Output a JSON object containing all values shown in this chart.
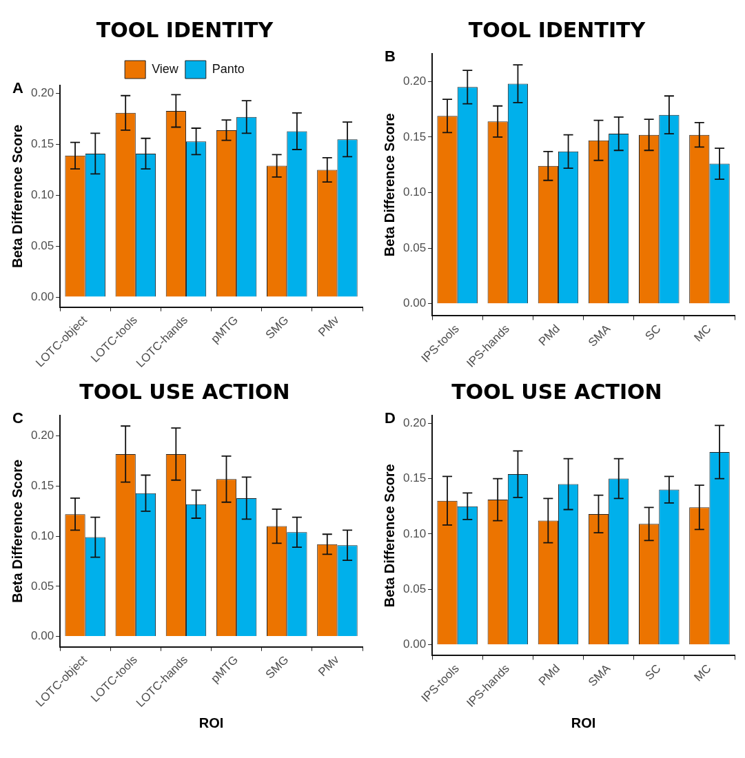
{
  "chart_data": [
    {
      "type": "bar",
      "title": "TOOL IDENTITY",
      "ylabel": "Beta Difference Score",
      "annotations": [
        "A"
      ],
      "categories": [
        "LOTC-object",
        "LOTC-tools",
        "LOTC-hands",
        "pMTG",
        "SMG",
        "PMv"
      ],
      "legend": "top",
      "grid": false,
      "ylim": [
        -0.01,
        0.208
      ],
      "yticks": [
        {
          "value": 0,
          "label": "0.00"
        },
        {
          "value": 0.05,
          "label": "0.05"
        },
        {
          "value": 0.1,
          "label": "0.10"
        },
        {
          "value": 0.15,
          "label": "0.15"
        },
        {
          "value": 0.2,
          "label": "0.20"
        }
      ],
      "series": [
        {
          "name": "View",
          "color": "#ec7400",
          "values": [
            0.139,
            0.181,
            0.183,
            0.164,
            0.129,
            0.125
          ],
          "errors": [
            [
              0.126,
              0.152
            ],
            [
              0.164,
              0.198
            ],
            [
              0.167,
              0.199
            ],
            [
              0.154,
              0.174
            ],
            [
              0.118,
              0.14
            ],
            [
              0.113,
              0.137
            ]
          ]
        },
        {
          "name": "Panto",
          "color": "#00b0eb",
          "values": [
            0.141,
            0.141,
            0.153,
            0.177,
            0.163,
            0.155
          ],
          "errors": [
            [
              0.121,
              0.161
            ],
            [
              0.126,
              0.156
            ],
            [
              0.14,
              0.166
            ],
            [
              0.161,
              0.193
            ],
            [
              0.145,
              0.181
            ],
            [
              0.138,
              0.172
            ]
          ]
        }
      ]
    },
    {
      "type": "bar",
      "title": "TOOL IDENTITY",
      "ylabel": "Beta Difference Score",
      "annotations": [
        "B"
      ],
      "categories": [
        "IPS-tools",
        "IPS-hands",
        "PMd",
        "SMA",
        "SC",
        "MC"
      ],
      "grid": false,
      "ylim": [
        -0.011,
        0.225
      ],
      "yticks": [
        {
          "value": 0,
          "label": "0.00"
        },
        {
          "value": 0.05,
          "label": "0.05"
        },
        {
          "value": 0.1,
          "label": "0.10"
        },
        {
          "value": 0.15,
          "label": "0.15"
        },
        {
          "value": 0.2,
          "label": "0.20"
        }
      ],
      "series": [
        {
          "color": "#ec7400",
          "values": [
            0.169,
            0.164,
            0.124,
            0.147,
            0.152,
            0.152
          ],
          "errors": [
            [
              0.154,
              0.184
            ],
            [
              0.15,
              0.178
            ],
            [
              0.111,
              0.137
            ],
            [
              0.129,
              0.165
            ],
            [
              0.138,
              0.166
            ],
            [
              0.141,
              0.163
            ]
          ]
        },
        {
          "color": "#00b0eb",
          "values": [
            0.195,
            0.198,
            0.137,
            0.153,
            0.17,
            0.126
          ],
          "errors": [
            [
              0.18,
              0.21
            ],
            [
              0.181,
              0.215
            ],
            [
              0.122,
              0.152
            ],
            [
              0.138,
              0.168
            ],
            [
              0.153,
              0.187
            ],
            [
              0.112,
              0.14
            ]
          ]
        }
      ]
    },
    {
      "type": "bar",
      "title": "TOOL USE ACTION",
      "xlabel": "ROI",
      "ylabel": "Beta Difference Score",
      "annotations": [
        "C"
      ],
      "categories": [
        "LOTC-object",
        "LOTC-tools",
        "LOTC-hands",
        "pMTG",
        "SMG",
        "PMv"
      ],
      "grid": false,
      "ylim": [
        -0.0105,
        0.2205
      ],
      "yticks": [
        {
          "value": 0,
          "label": "0.00"
        },
        {
          "value": 0.05,
          "label": "0.05"
        },
        {
          "value": 0.1,
          "label": "0.10"
        },
        {
          "value": 0.15,
          "label": "0.15"
        },
        {
          "value": 0.2,
          "label": "0.20"
        }
      ],
      "series": [
        {
          "color": "#ec7400",
          "values": [
            0.122,
            0.182,
            0.182,
            0.157,
            0.11,
            0.092
          ],
          "errors": [
            [
              0.106,
              0.138
            ],
            [
              0.154,
              0.21
            ],
            [
              0.156,
              0.208
            ],
            [
              0.134,
              0.18
            ],
            [
              0.093,
              0.127
            ],
            [
              0.082,
              0.102
            ]
          ]
        },
        {
          "color": "#00b0eb",
          "values": [
            0.099,
            0.143,
            0.132,
            0.138,
            0.104,
            0.091
          ],
          "errors": [
            [
              0.079,
              0.119
            ],
            [
              0.125,
              0.161
            ],
            [
              0.118,
              0.146
            ],
            [
              0.117,
              0.159
            ],
            [
              0.089,
              0.119
            ],
            [
              0.076,
              0.106
            ]
          ]
        }
      ]
    },
    {
      "type": "bar",
      "title": "TOOL USE ACTION",
      "xlabel": "ROI",
      "ylabel": "Beta Difference Score",
      "annotations": [
        "D"
      ],
      "categories": [
        "IPS-tools",
        "IPS-hands",
        "PMd",
        "SMA",
        "SC",
        "MC"
      ],
      "grid": false,
      "ylim": [
        -0.01,
        0.207
      ],
      "yticks": [
        {
          "value": 0,
          "label": "0.00"
        },
        {
          "value": 0.05,
          "label": "0.05"
        },
        {
          "value": 0.1,
          "label": "0.10"
        },
        {
          "value": 0.15,
          "label": "0.15"
        },
        {
          "value": 0.2,
          "label": "0.20"
        }
      ],
      "series": [
        {
          "color": "#ec7400",
          "values": [
            0.13,
            0.131,
            0.112,
            0.118,
            0.109,
            0.124
          ],
          "errors": [
            [
              0.108,
              0.152
            ],
            [
              0.112,
              0.15
            ],
            [
              0.092,
              0.132
            ],
            [
              0.101,
              0.135
            ],
            [
              0.094,
              0.124
            ],
            [
              0.104,
              0.144
            ]
          ]
        },
        {
          "color": "#00b0eb",
          "values": [
            0.125,
            0.154,
            0.145,
            0.15,
            0.14,
            0.174
          ],
          "errors": [
            [
              0.113,
              0.137
            ],
            [
              0.133,
              0.175
            ],
            [
              0.122,
              0.168
            ],
            [
              0.132,
              0.168
            ],
            [
              0.128,
              0.152
            ],
            [
              0.15,
              0.198
            ]
          ]
        }
      ]
    }
  ]
}
